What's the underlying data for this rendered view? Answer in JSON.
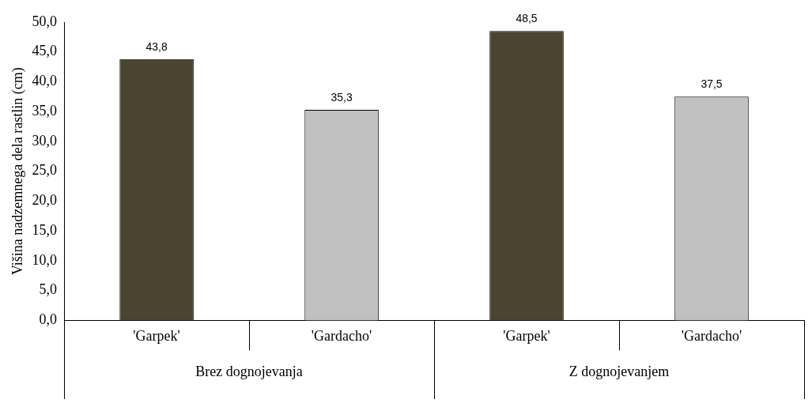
{
  "chart_data": {
    "type": "bar",
    "ylabel": "Višina nadzemnega dela rastlin (cm)",
    "categories": [
      "'Garpek'",
      "'Gardacho'",
      "'Garpek'",
      "'Gardacho'"
    ],
    "values": [
      43.8,
      35.3,
      48.5,
      37.5
    ],
    "colors": [
      "#4a4430",
      "#c0c0c0",
      "#4a4430",
      "#c0c0c0"
    ],
    "value_labels": [
      "43,8",
      "35,3",
      "48,5",
      "37,5"
    ],
    "annotations": [
      "Brez dognojevanja",
      "Z dognojevanjem"
    ],
    "ylim": [
      0,
      50
    ],
    "yticks": [
      {
        "value": 0,
        "label": "0,0"
      },
      {
        "value": 5,
        "label": "5,0"
      },
      {
        "value": 10,
        "label": "10,0"
      },
      {
        "value": 15,
        "label": "15,0"
      },
      {
        "value": 20,
        "label": "20,0"
      },
      {
        "value": 25,
        "label": "25,0"
      },
      {
        "value": 30,
        "label": "30,0"
      },
      {
        "value": 35,
        "label": "35,0"
      },
      {
        "value": 40,
        "label": "40,0"
      },
      {
        "value": 45,
        "label": "45,0"
      },
      {
        "value": 50,
        "label": "50,0"
      }
    ],
    "grid": false,
    "legend": false
  }
}
